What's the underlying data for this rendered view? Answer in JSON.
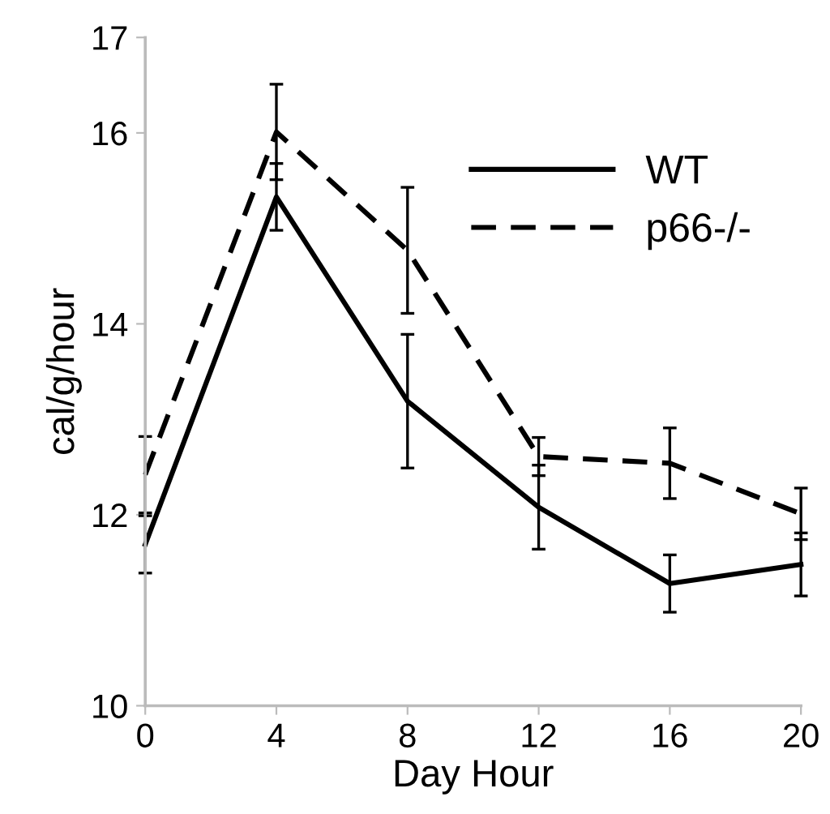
{
  "chart_data": {
    "type": "line",
    "xlabel": "Day Hour",
    "ylabel": "cal/g/hour",
    "x": [
      0,
      4,
      8,
      12,
      16,
      20
    ],
    "series": [
      {
        "name": "WT",
        "color": "#000000",
        "line_style": "solid",
        "values": [
          11.69,
          15.33,
          13.19,
          12.08,
          11.28,
          11.48
        ],
        "errors": [
          0.3,
          0.35,
          0.7,
          0.44,
          0.3,
          0.33
        ]
      },
      {
        "name": "p66-/-",
        "color": "#000000",
        "line_style": "dashed",
        "values": [
          12.42,
          16.01,
          14.77,
          12.61,
          12.54,
          12.01
        ],
        "errors": [
          0.4,
          0.5,
          0.66,
          0.2,
          0.37,
          0.27
        ]
      }
    ],
    "xlim": [
      0,
      20
    ],
    "xticks": [
      0,
      4,
      8,
      12,
      16,
      20
    ],
    "ylim": [
      10,
      17
    ],
    "yticks": [
      10,
      12,
      14,
      16,
      17
    ],
    "grid": false,
    "legend": "top right",
    "marker": "none"
  }
}
